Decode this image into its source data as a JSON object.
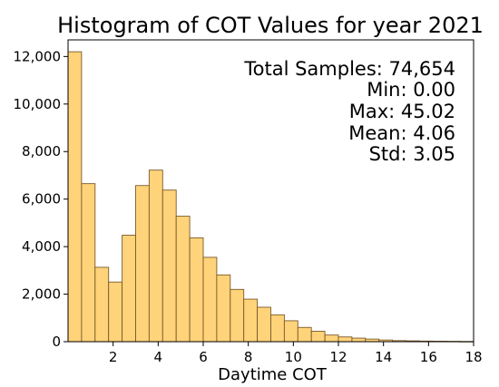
{
  "chart_data": {
    "type": "bar",
    "title": "Histogram of COT Values for year 2021",
    "xlabel": "Daytime COT",
    "ylabel": "",
    "xlim": [
      0,
      18
    ],
    "ylim": [
      0,
      12700
    ],
    "bin_width": 0.6,
    "bin_starts": [
      0,
      0.6,
      1.2,
      1.8,
      2.4,
      3.0,
      3.6,
      4.2,
      4.8,
      5.4,
      6.0,
      6.6,
      7.2,
      7.8,
      8.4,
      9.0,
      9.6,
      10.2,
      10.8,
      11.4,
      12.0,
      12.6,
      13.2,
      13.8,
      14.4,
      15.0,
      15.6,
      16.2,
      16.8,
      17.4
    ],
    "values": [
      12200,
      6650,
      3130,
      2510,
      4480,
      6570,
      7220,
      6380,
      5280,
      4370,
      3550,
      2810,
      2200,
      1790,
      1450,
      1130,
      880,
      600,
      440,
      280,
      200,
      150,
      110,
      70,
      45,
      35,
      25,
      20,
      15,
      8
    ],
    "x_ticks": [
      "2",
      "4",
      "6",
      "8",
      "10",
      "12",
      "14",
      "16",
      "18"
    ],
    "y_ticks": [
      "0",
      "2,000",
      "4,000",
      "6,000",
      "8,000",
      "10,000",
      "12,000"
    ],
    "grid": false,
    "bar_color": "#ffd37a",
    "bar_edge_color": "#7a5a2a"
  },
  "stats": {
    "total": "Total Samples: 74,654",
    "min": "Min: 0.00",
    "max": "Max: 45.02",
    "mean": "Mean: 4.06",
    "std": "Std: 3.05"
  }
}
